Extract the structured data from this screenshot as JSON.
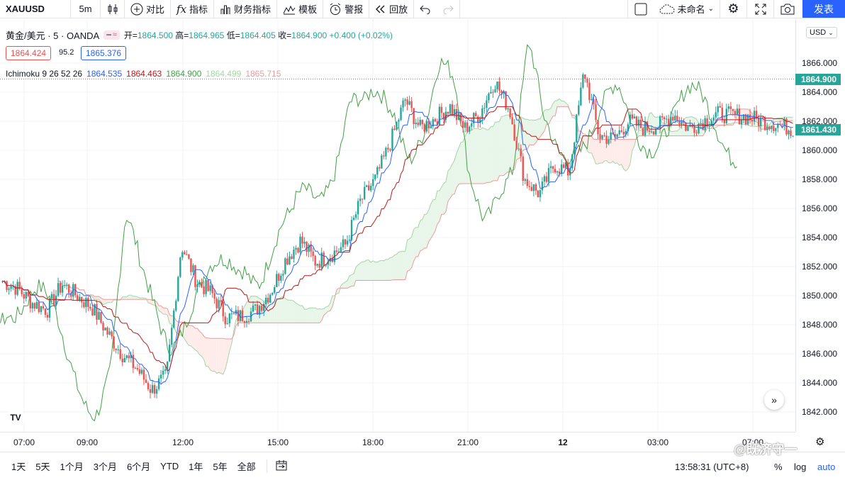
{
  "toolbar": {
    "symbol": "XAUUSD",
    "interval": "5m",
    "compare": "对比",
    "indicators": "指标",
    "financials": "财务指标",
    "templates": "模板",
    "alert": "警报",
    "replay": "回放",
    "layout_name": "未命名",
    "publish": "发表"
  },
  "legend": {
    "title": "黄金/美元 · 5 · OANDA",
    "open_label": "开=",
    "open": "1864.500",
    "high_label": "高=",
    "high": "1864.965",
    "low_label": "低=",
    "low": "1864.405",
    "close_label": "收=",
    "close": "1864.900",
    "change": "+0.400 (+0.02%)",
    "bid": "1864.424",
    "spread": "95.2",
    "ask": "1865.376"
  },
  "indicator": {
    "name": "Ichimoku 9 26 52 26",
    "v1": "1864.535",
    "v2": "1864.463",
    "v3": "1864.900",
    "v4": "1864.499",
    "v5": "1865.715"
  },
  "currency": "USD",
  "price_labels": {
    "last": "1864.900",
    "current": "1861.430"
  },
  "colors": {
    "up": "#26a69a",
    "down": "#ef5350",
    "conversion": "#2962ff",
    "base": "#b71c1c",
    "lagging": "#43a047",
    "cloud_bull": "#e8f5e9",
    "cloud_bear": "#fdecea",
    "accent": "#2962ff"
  },
  "chart_data": {
    "type": "candlestick",
    "ylim": [
      1841,
      1868
    ],
    "y_ticks": [
      "1866.000",
      "1864.000",
      "1862.000",
      "1860.000",
      "1858.000",
      "1856.000",
      "1854.000",
      "1852.000",
      "1850.000",
      "1848.000",
      "1846.000",
      "1844.000",
      "1842.000"
    ],
    "x_ticks": [
      "07:00",
      "09:00",
      "12:00",
      "15:00",
      "18:00",
      "21:00",
      "12",
      "03:00",
      "07:00"
    ],
    "close_path": [
      1851,
      1850.5,
      1849.5,
      1849,
      1850.8,
      1850,
      1849.2,
      1847.5,
      1846,
      1845,
      1843.5,
      1844.5,
      1853.5,
      1851,
      1850.2,
      1848.5,
      1848.6,
      1849,
      1850.3,
      1852.5,
      1853.8,
      1852.3,
      1852.8,
      1853.5,
      1856.5,
      1858,
      1860.5,
      1863.5,
      1861.5,
      1862.2,
      1863,
      1861.5,
      1862.5,
      1864.8,
      1862.8,
      1858,
      1857,
      1859,
      1858.5,
      1865.5,
      1861,
      1860.8,
      1862,
      1861.5,
      1861.7,
      1862.5,
      1861.5,
      1862,
      1862.5,
      1862.4,
      1862.3,
      1862,
      1861.8,
      1861.43
    ]
  },
  "xaxis": {
    "ticks": [
      "07:00",
      "09:00",
      "12:00",
      "15:00",
      "18:00",
      "21:00",
      "12",
      "03:00",
      "07:00"
    ]
  },
  "bottom": {
    "ranges": [
      "1天",
      "5天",
      "1个月",
      "3个月",
      "6个月",
      "YTD",
      "1年",
      "5年",
      "全部"
    ],
    "clock": "13:58:31 (UTC+8)",
    "percent": "%",
    "log": "log",
    "auto": "auto"
  },
  "watermark": "@既济守一"
}
